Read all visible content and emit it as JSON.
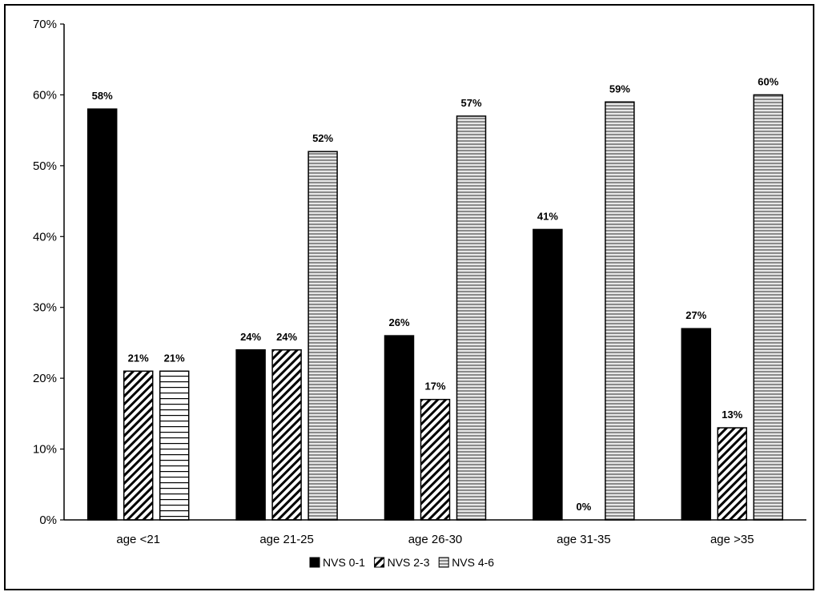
{
  "chart_data": {
    "type": "bar",
    "categories": [
      "age <21",
      "age 21-25",
      "age 26-30",
      "age 31-35",
      "age >35"
    ],
    "series": [
      {
        "name": "NVS 0-1",
        "values": [
          58,
          24,
          26,
          41,
          27
        ],
        "labels": [
          "58%",
          "24%",
          "26%",
          "41%",
          "27%"
        ],
        "color": "#000000",
        "pattern": "solid"
      },
      {
        "name": "NVS 2-3",
        "values": [
          21,
          24,
          17,
          0,
          13
        ],
        "labels": [
          "21%",
          "24%",
          "17%",
          "0%",
          "13%"
        ],
        "color": "#000000",
        "pattern": "diagonal-stripes"
      },
      {
        "name": "NVS 4-6",
        "values": [
          21,
          52,
          57,
          59,
          60
        ],
        "labels": [
          "21%",
          "52%",
          "57%",
          "59%",
          "60%"
        ],
        "color": "#9a9a9a",
        "pattern": "horizontal-stripes"
      }
    ],
    "first_bar_nvs46_style": "white-horizontal-stripes",
    "ylim": [
      0,
      70
    ],
    "yticks": [
      "0%",
      "10%",
      "20%",
      "30%",
      "40%",
      "50%",
      "60%",
      "70%"
    ],
    "ytick_values": [
      0,
      10,
      20,
      30,
      40,
      50,
      60,
      70
    ],
    "grid": false,
    "legend_position": "bottom",
    "title": "",
    "xlabel": "",
    "ylabel": ""
  }
}
